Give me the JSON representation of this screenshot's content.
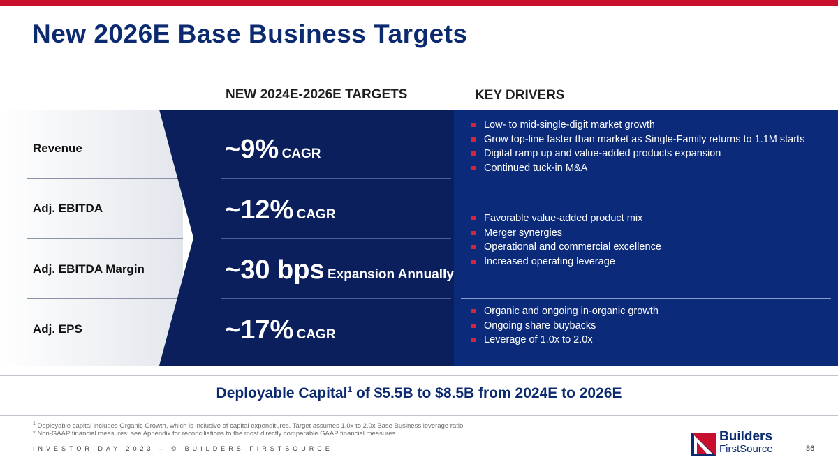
{
  "title": "New 2026E Base Business Targets",
  "column_headers": {
    "targets": "NEW 2024E-2026E TARGETS",
    "drivers": "KEY DRIVERS"
  },
  "rows": [
    {
      "label": "Revenue",
      "target_big": "~9%",
      "target_small": "CAGR"
    },
    {
      "label": "Adj. EBITDA",
      "target_big": "~12%",
      "target_small": "CAGR"
    },
    {
      "label": "Adj. EBITDA Margin",
      "target_big": "~30 bps",
      "target_small": "Expansion Annually"
    },
    {
      "label": "Adj. EPS",
      "target_big": "~17%",
      "target_small": "CAGR"
    }
  ],
  "drivers": [
    [
      "Low- to mid-single-digit market growth",
      "Grow top-line faster than market as Single-Family returns to 1.1M starts",
      "Digital ramp up and value-added products expansion",
      "Continued tuck-in M&A"
    ],
    [
      "Favorable value-added product mix",
      "Merger synergies",
      "Operational and commercial excellence",
      "Increased operating leverage"
    ],
    [
      "Organic and ongoing in-organic growth",
      "Ongoing share buybacks",
      "Leverage of 1.0x to 2.0x"
    ]
  ],
  "capital": {
    "prefix": "Deployable Capital",
    "sup": "1",
    "suffix": " of $5.5B to $8.5B from 2024E to 2026E"
  },
  "footnotes": {
    "note1_marker": "1",
    "note1": " Deployable capital includes Organic Growth, which is inclusive of capital expenditures. Target assumes 1.0x to 2.0x Base Business leverage ratio.",
    "note2": "* Non-GAAP financial measures; see Appendix for reconciliations to the most directly comparable GAAP financial measures."
  },
  "tagline": "INVESTOR DAY 2023 – © BUILDERS FIRSTSOURCE",
  "logo": {
    "line1": "Builders",
    "line2": "FirstSource"
  },
  "page_number": "86",
  "colors": {
    "navy": "#0b2a6f",
    "dark_navy": "#0a1f5c",
    "panel_blue": "#0b2a7a",
    "brand_red": "#c8102e"
  }
}
